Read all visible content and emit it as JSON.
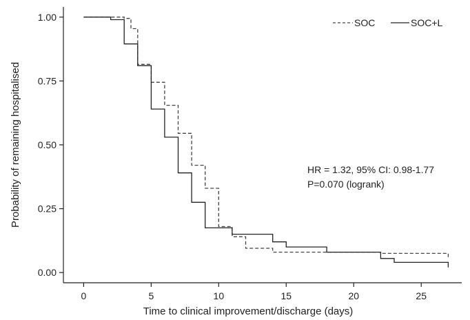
{
  "chart_data": {
    "type": "line",
    "subtype": "step (Kaplan-Meier)",
    "xlabel": "Time to clinical improvement/discharge (days)",
    "ylabel": "Probability of remaining hospitalised",
    "xlim": [
      -1.5,
      28
    ],
    "ylim": [
      -0.04,
      1.04
    ],
    "xticks": [
      0,
      5,
      10,
      15,
      20,
      25
    ],
    "yticks": [
      0.0,
      0.25,
      0.5,
      0.75,
      1.0
    ],
    "ytick_labels": [
      "0.00",
      "0.25",
      "0.50",
      "0.75",
      "1.00"
    ],
    "grid": false,
    "legend_position": "top-right",
    "series": [
      {
        "name": "SOC",
        "style": "dashed",
        "color": "#444444",
        "x": [
          0,
          3,
          3.5,
          4,
          5,
          6,
          7,
          8,
          9,
          10,
          11,
          12,
          14,
          22,
          27
        ],
        "y": [
          1.0,
          0.995,
          0.955,
          0.815,
          0.745,
          0.655,
          0.545,
          0.42,
          0.33,
          0.18,
          0.14,
          0.095,
          0.08,
          0.075,
          0.055
        ]
      },
      {
        "name": "SOC+L",
        "style": "solid",
        "color": "#222222",
        "x": [
          0,
          2,
          3,
          4,
          5,
          6,
          7,
          8,
          9,
          11,
          14,
          15,
          18,
          22,
          23,
          27
        ],
        "y": [
          1.0,
          0.99,
          0.895,
          0.81,
          0.64,
          0.53,
          0.39,
          0.275,
          0.175,
          0.15,
          0.12,
          0.1,
          0.08,
          0.055,
          0.04,
          0.02
        ]
      }
    ],
    "annotations": [
      "HR = 1.32, 95% CI: 0.98-1.77",
      "P=0.070 (logrank)"
    ]
  }
}
